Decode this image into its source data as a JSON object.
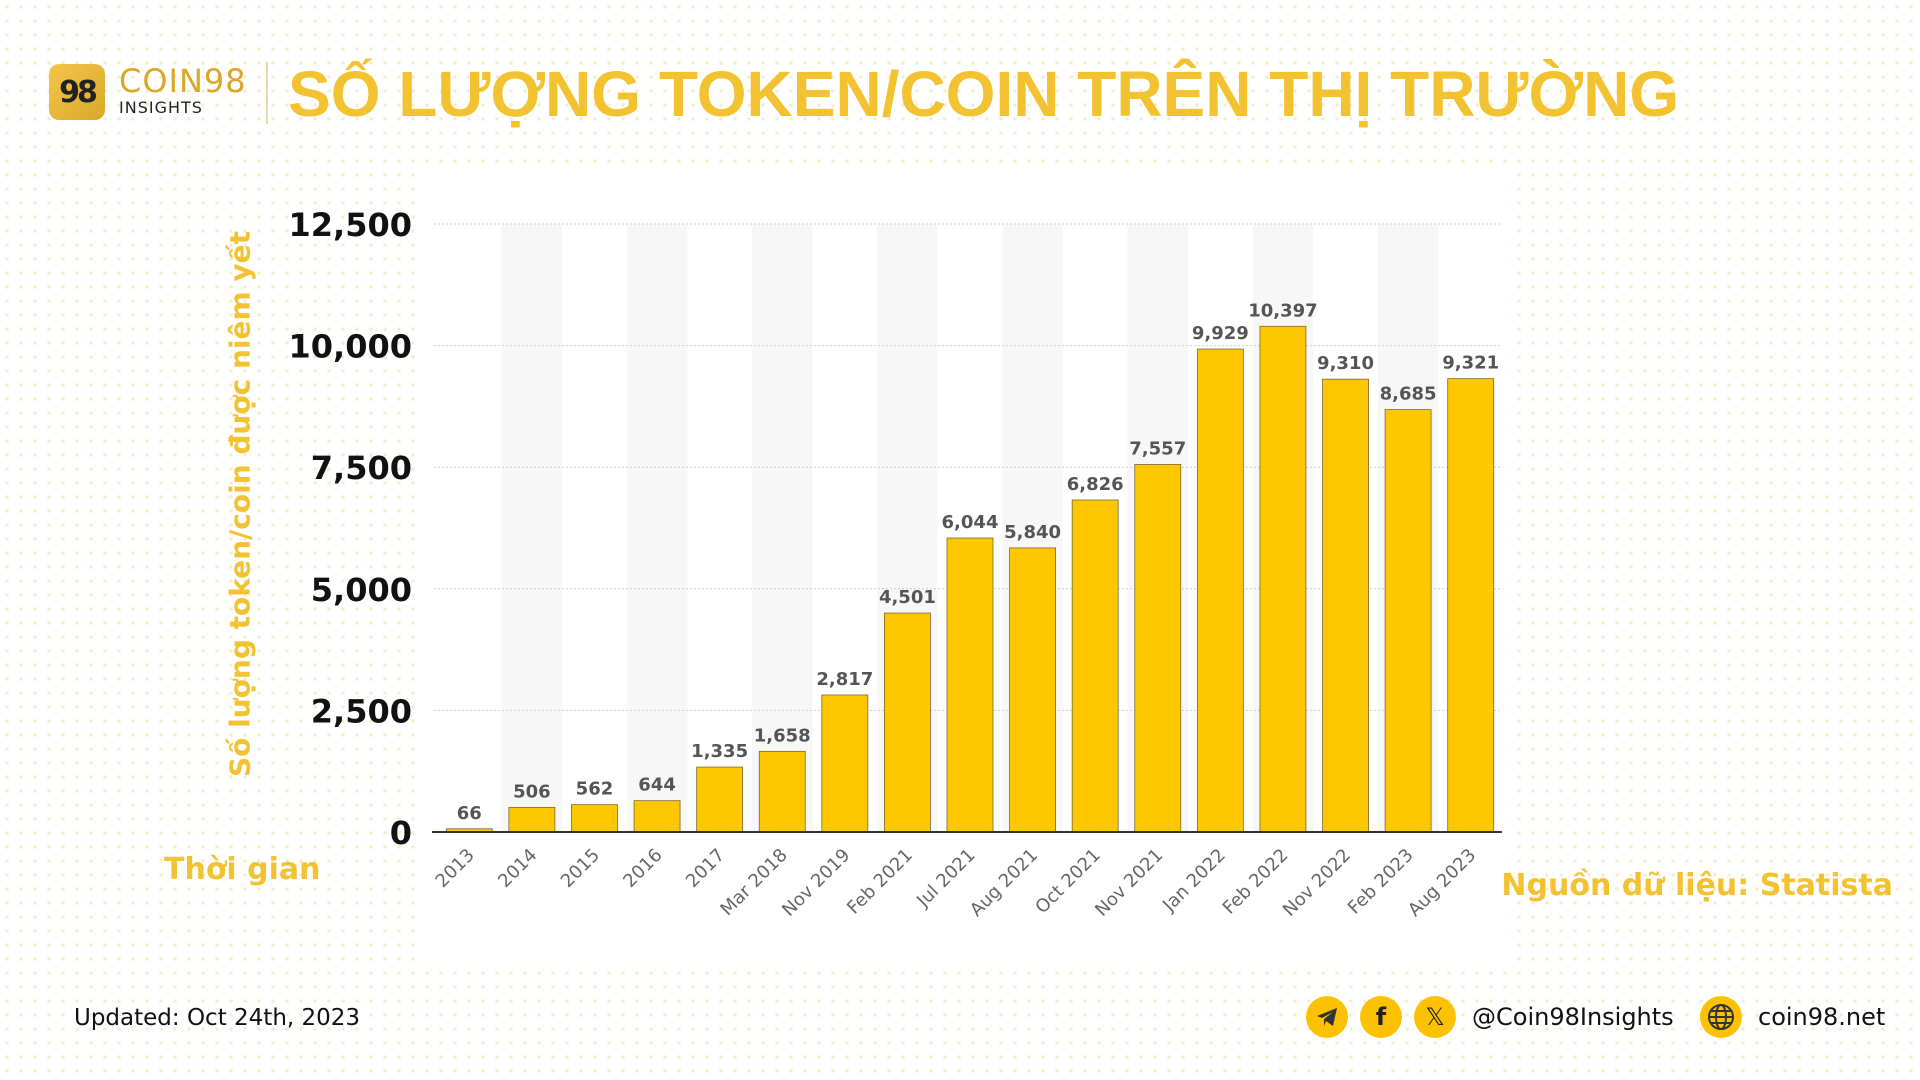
{
  "brand": {
    "logo_text": "98",
    "name": "COIN98",
    "sub": "INSIGHTS"
  },
  "title": "SỐ LƯỢNG TOKEN/COIN TRÊN THỊ TRƯỜNG",
  "colors": {
    "bar": "#FFC700",
    "accent": "#F2C230",
    "band": "#F7F7F7"
  },
  "chart_data": {
    "type": "bar",
    "title": "SỐ LƯỢNG TOKEN/COIN TRÊN THỊ TRƯỜNG",
    "xlabel": "Thời gian",
    "ylabel": "Số lượng token/coin được niêm yết",
    "ylim": [
      0,
      12500
    ],
    "yticks": [
      0,
      2500,
      5000,
      7500,
      10000,
      12500
    ],
    "ytick_labels": [
      "0",
      "2,500",
      "5,000",
      "7,500",
      "10,000",
      "12,500"
    ],
    "grid": true,
    "categories": [
      "2013",
      "2014",
      "2015",
      "2016",
      "2017",
      "Mar 2018",
      "Nov 2019",
      "Feb 2021",
      "Jul 2021",
      "Aug 2021",
      "Oct 2021",
      "Nov 2021",
      "Jan 2022",
      "Feb 2022",
      "Nov 2022",
      "Feb 2023",
      "Aug 2023"
    ],
    "values": [
      66,
      506,
      562,
      644,
      1335,
      1658,
      2817,
      4501,
      6044,
      5840,
      6826,
      7557,
      9929,
      10397,
      9310,
      8685,
      9321
    ],
    "value_labels": [
      "66",
      "506",
      "562",
      "644",
      "1,335",
      "1,658",
      "2,817",
      "4,501",
      "6,044",
      "5,840",
      "6,826",
      "7,557",
      "9,929",
      "10,397",
      "9,310",
      "8,685",
      "9,321"
    ]
  },
  "source": "Nguồn dữ liệu: Statista",
  "footer": {
    "updated": "Updated: Oct 24th, 2023",
    "handle": "@Coin98Insights",
    "website": "coin98.net",
    "icons": [
      "telegram-icon",
      "facebook-icon",
      "x-icon",
      "globe-icon"
    ]
  }
}
